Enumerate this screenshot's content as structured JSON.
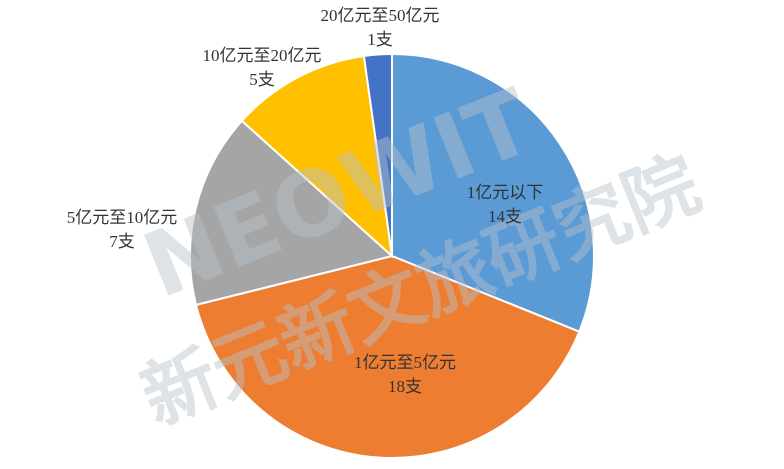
{
  "chart_data": {
    "type": "pie",
    "categories": [
      "1亿元以下",
      "1亿元至5亿元",
      "5亿元至10亿元",
      "10亿元至20亿元",
      "20亿元至50亿元"
    ],
    "values": [
      14,
      18,
      7,
      5,
      1
    ],
    "value_labels": [
      "14支",
      "18支",
      "7支",
      "5支",
      "1支"
    ],
    "colors": [
      "#5b9bd5",
      "#ed7d31",
      "#a5a5a5",
      "#ffc000",
      "#4472c4"
    ],
    "watermark": [
      "NEOWIT",
      "新元新文旅研究院"
    ]
  }
}
